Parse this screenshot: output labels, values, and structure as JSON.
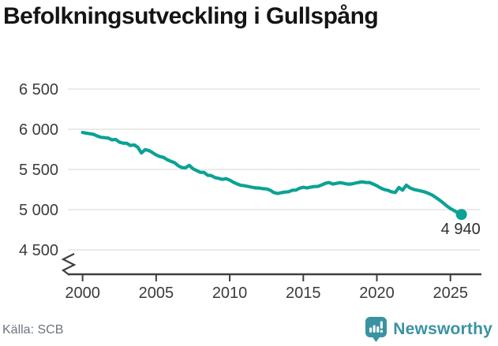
{
  "chart_data": {
    "type": "line",
    "title": "Befolkningsutveckling i Gullspång",
    "xlabel": "",
    "ylabel": "",
    "x_domain": [
      1999,
      2027
    ],
    "y_domain_shown": [
      4500,
      6500
    ],
    "y_axis_break": true,
    "grid": true,
    "legend": "none",
    "x_ticks": [
      {
        "value": 2000,
        "label": "2000"
      },
      {
        "value": 2005,
        "label": "2005"
      },
      {
        "value": 2010,
        "label": "2010"
      },
      {
        "value": 2015,
        "label": "2015"
      },
      {
        "value": 2020,
        "label": "2020"
      },
      {
        "value": 2025,
        "label": "2025"
      }
    ],
    "y_ticks": [
      {
        "value": 6500,
        "label": "6 500"
      },
      {
        "value": 6000,
        "label": "6 000"
      },
      {
        "value": 5500,
        "label": "5 500"
      },
      {
        "value": 5000,
        "label": "5 000"
      },
      {
        "value": 4500,
        "label": "4 500"
      }
    ],
    "colors": {
      "line": "#0ca295",
      "grid": "#e3e3e3",
      "axis": "#3f3f3f",
      "tick_text": "#3b3b3b",
      "end_label_text": "#2e2e2e"
    },
    "end_point": {
      "x": 2025.75,
      "y": 4940,
      "label": "4 940"
    },
    "series": [
      {
        "name": "Befolkning i Gullspång",
        "points": [
          [
            2000.0,
            5960
          ],
          [
            2000.25,
            5952
          ],
          [
            2000.5,
            5944
          ],
          [
            2000.75,
            5936
          ],
          [
            2001.0,
            5916
          ],
          [
            2001.25,
            5900
          ],
          [
            2001.5,
            5895
          ],
          [
            2001.75,
            5890
          ],
          [
            2002.0,
            5868
          ],
          [
            2002.25,
            5874
          ],
          [
            2002.5,
            5840
          ],
          [
            2002.75,
            5827
          ],
          [
            2003.0,
            5825
          ],
          [
            2003.25,
            5798
          ],
          [
            2003.5,
            5806
          ],
          [
            2003.75,
            5776
          ],
          [
            2004.0,
            5705
          ],
          [
            2004.25,
            5746
          ],
          [
            2004.5,
            5736
          ],
          [
            2004.75,
            5710
          ],
          [
            2005.0,
            5680
          ],
          [
            2005.25,
            5661
          ],
          [
            2005.5,
            5650
          ],
          [
            2005.75,
            5622
          ],
          [
            2006.0,
            5601
          ],
          [
            2006.25,
            5584
          ],
          [
            2006.5,
            5547
          ],
          [
            2006.75,
            5524
          ],
          [
            2007.0,
            5521
          ],
          [
            2007.25,
            5551
          ],
          [
            2007.5,
            5509
          ],
          [
            2007.75,
            5486
          ],
          [
            2008.0,
            5465
          ],
          [
            2008.25,
            5464
          ],
          [
            2008.5,
            5427
          ],
          [
            2008.75,
            5424
          ],
          [
            2009.0,
            5399
          ],
          [
            2009.25,
            5389
          ],
          [
            2009.5,
            5376
          ],
          [
            2009.75,
            5385
          ],
          [
            2010.0,
            5367
          ],
          [
            2010.25,
            5341
          ],
          [
            2010.5,
            5320
          ],
          [
            2010.75,
            5303
          ],
          [
            2011.0,
            5297
          ],
          [
            2011.25,
            5288
          ],
          [
            2011.5,
            5279
          ],
          [
            2011.75,
            5271
          ],
          [
            2012.0,
            5269
          ],
          [
            2012.25,
            5261
          ],
          [
            2012.5,
            5258
          ],
          [
            2012.75,
            5241
          ],
          [
            2013.0,
            5213
          ],
          [
            2013.25,
            5201
          ],
          [
            2013.5,
            5211
          ],
          [
            2013.75,
            5219
          ],
          [
            2014.0,
            5223
          ],
          [
            2014.25,
            5241
          ],
          [
            2014.5,
            5243
          ],
          [
            2014.75,
            5267
          ],
          [
            2015.0,
            5278
          ],
          [
            2015.25,
            5271
          ],
          [
            2015.5,
            5280
          ],
          [
            2015.75,
            5287
          ],
          [
            2016.0,
            5289
          ],
          [
            2016.25,
            5307
          ],
          [
            2016.5,
            5327
          ],
          [
            2016.75,
            5337
          ],
          [
            2017.0,
            5319
          ],
          [
            2017.25,
            5326
          ],
          [
            2017.5,
            5336
          ],
          [
            2017.75,
            5327
          ],
          [
            2018.0,
            5318
          ],
          [
            2018.25,
            5319
          ],
          [
            2018.5,
            5328
          ],
          [
            2018.75,
            5338
          ],
          [
            2019.0,
            5346
          ],
          [
            2019.25,
            5338
          ],
          [
            2019.5,
            5337
          ],
          [
            2019.75,
            5319
          ],
          [
            2020.0,
            5297
          ],
          [
            2020.25,
            5270
          ],
          [
            2020.5,
            5251
          ],
          [
            2020.75,
            5240
          ],
          [
            2021.0,
            5222
          ],
          [
            2021.25,
            5214
          ],
          [
            2021.5,
            5276
          ],
          [
            2021.75,
            5242
          ],
          [
            2022.0,
            5304
          ],
          [
            2022.25,
            5272
          ],
          [
            2022.5,
            5252
          ],
          [
            2022.75,
            5242
          ],
          [
            2023.0,
            5232
          ],
          [
            2023.25,
            5221
          ],
          [
            2023.5,
            5203
          ],
          [
            2023.75,
            5182
          ],
          [
            2024.0,
            5152
          ],
          [
            2024.25,
            5121
          ],
          [
            2024.5,
            5085
          ],
          [
            2024.75,
            5046
          ],
          [
            2025.0,
            5014
          ],
          [
            2025.25,
            4988
          ],
          [
            2025.5,
            4962
          ],
          [
            2025.75,
            4940
          ]
        ]
      }
    ]
  },
  "footer": {
    "source": "Källa: SCB",
    "brand": "Newsworthy",
    "brand_color": "#3a93a2",
    "icon": "newsworthy-speech-bubble-bar-chart-icon"
  }
}
